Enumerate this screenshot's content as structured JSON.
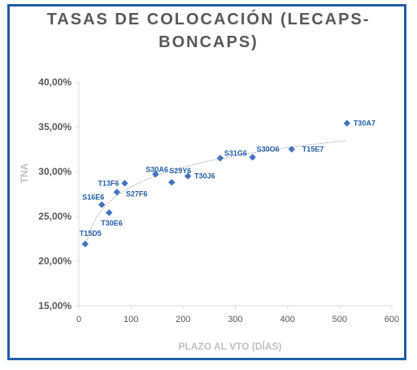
{
  "title_line1": "TASAS DE COLOCACIÓN (LECAPS-",
  "title_line2": "BONCAPS)",
  "chart_data": {
    "type": "scatter",
    "title": "TASAS DE COLOCACIÓN (LECAPS-BONCAPS)",
    "xlabel": "PLAZO AL VTO (DÍAS)",
    "ylabel": "TNA",
    "xlim": [
      0,
      600
    ],
    "ylim": [
      15,
      40
    ],
    "x_ticks": [
      0,
      100,
      200,
      300,
      400,
      500,
      600
    ],
    "y_ticks": [
      15,
      20,
      25,
      30,
      35,
      40
    ],
    "x_tick_labels": [
      "0",
      "100",
      "200",
      "300",
      "400",
      "500",
      "600"
    ],
    "y_tick_labels": [
      "15,00%",
      "20,00%",
      "25,00%",
      "30,00%",
      "35,00%",
      "40,00%"
    ],
    "trendline": "logarithmic",
    "marker_color": "#4472c4",
    "label_color": "#1f5fa8",
    "points": [
      {
        "label": "T15D5",
        "x": 12,
        "y": 21.9
      },
      {
        "label": "S16E6",
        "x": 44,
        "y": 26.3
      },
      {
        "label": "T30E6",
        "x": 58,
        "y": 25.4
      },
      {
        "label": "S27F6",
        "x": 73,
        "y": 27.7
      },
      {
        "label": "T13F6",
        "x": 88,
        "y": 28.7
      },
      {
        "label": "S30A6",
        "x": 147,
        "y": 29.7
      },
      {
        "label": "S29Y6",
        "x": 178,
        "y": 28.8
      },
      {
        "label": "T30J6",
        "x": 209,
        "y": 29.5
      },
      {
        "label": "S31G6",
        "x": 271,
        "y": 31.5
      },
      {
        "label": "S30O6",
        "x": 333,
        "y": 31.6
      },
      {
        "label": "T15E7",
        "x": 408,
        "y": 32.5
      },
      {
        "label": "T30A7",
        "x": 514,
        "y": 35.4
      }
    ]
  }
}
